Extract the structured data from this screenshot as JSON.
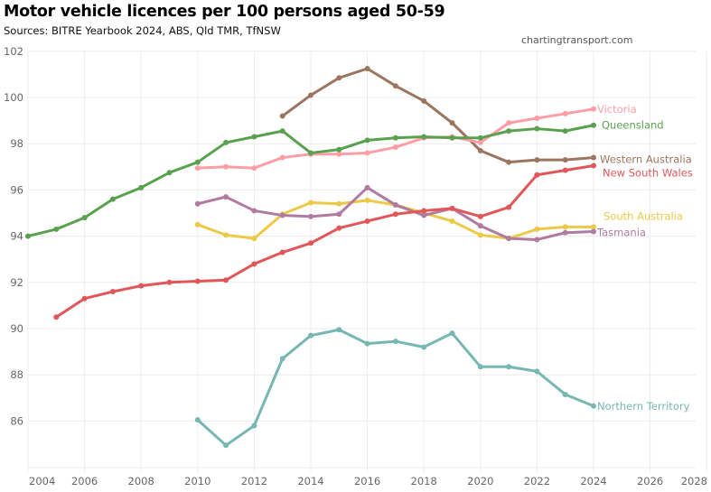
{
  "header": {
    "title": "Motor vehicle licences per 100 persons aged 50-59",
    "subtitle": "Sources: BITRE Yearbook 2024, ABS, Qld TMR, TfNSW",
    "watermark": "chartingtransport.com"
  },
  "chart_data": {
    "type": "line",
    "title": "Motor vehicle licences per 100 persons aged 50-59",
    "subtitle": "Sources: BITRE Yearbook 2024, ABS, Qld TMR, TfNSW",
    "xlabel": "",
    "ylabel": "",
    "xlim": [
      2004,
      2028.4
    ],
    "ylim": [
      84.0,
      102.2
    ],
    "x_ticks": [
      2004,
      2006,
      2008,
      2010,
      2012,
      2014,
      2016,
      2018,
      2020,
      2022,
      2024,
      2026,
      2028
    ],
    "y_ticks": [
      86,
      88,
      90,
      92,
      94,
      96,
      98,
      100,
      102
    ],
    "grid": true,
    "legend": "direct labels at line ends (right)",
    "series": [
      {
        "name": "Queensland",
        "color": "#59a14f",
        "x": [
          2004,
          2005,
          2006,
          2007,
          2008,
          2009,
          2010,
          2011,
          2012,
          2013,
          2014,
          2015,
          2016,
          2017,
          2018,
          2019,
          2020,
          2021,
          2022,
          2023,
          2024
        ],
        "values": [
          94.0,
          94.3,
          94.8,
          95.6,
          96.1,
          96.75,
          97.2,
          98.05,
          98.3,
          98.55,
          97.6,
          97.75,
          98.15,
          98.25,
          98.3,
          98.25,
          98.25,
          98.55,
          98.65,
          98.55,
          98.8
        ]
      },
      {
        "name": "Victoria",
        "color": "#ff9da7",
        "x": [
          2010,
          2011,
          2012,
          2013,
          2014,
          2015,
          2016,
          2017,
          2018,
          2019,
          2020,
          2021,
          2022,
          2023,
          2024
        ],
        "values": [
          96.95,
          97.0,
          96.95,
          97.4,
          97.55,
          97.55,
          97.6,
          97.85,
          98.25,
          98.3,
          98.05,
          98.9,
          99.1,
          99.3,
          99.5
        ]
      },
      {
        "name": "Western Australia",
        "color": "#9c755f",
        "x": [
          2013,
          2014,
          2015,
          2016,
          2017,
          2018,
          2019,
          2020,
          2021,
          2022,
          2023,
          2024
        ],
        "values": [
          99.2,
          100.1,
          100.85,
          101.25,
          100.5,
          99.85,
          98.9,
          97.7,
          97.2,
          97.3,
          97.3,
          97.4
        ]
      },
      {
        "name": "New South Wales",
        "color": "#e15759",
        "x": [
          2005,
          2006,
          2007,
          2008,
          2009,
          2010,
          2011,
          2012,
          2013,
          2014,
          2015,
          2016,
          2017,
          2018,
          2019,
          2020,
          2021,
          2022,
          2023,
          2024
        ],
        "values": [
          90.5,
          91.3,
          91.6,
          91.85,
          92.0,
          92.05,
          92.1,
          92.8,
          93.3,
          93.7,
          94.35,
          94.65,
          94.95,
          95.1,
          95.2,
          94.85,
          95.25,
          96.65,
          96.85,
          97.05
        ]
      },
      {
        "name": "South Australia",
        "color": "#edc948",
        "x": [
          2010,
          2011,
          2012,
          2013,
          2014,
          2015,
          2016,
          2017,
          2018,
          2019,
          2020,
          2021,
          2022,
          2023,
          2024
        ],
        "values": [
          94.5,
          94.05,
          93.9,
          94.95,
          95.45,
          95.4,
          95.55,
          95.35,
          95.0,
          94.65,
          94.05,
          93.9,
          94.3,
          94.4,
          94.4
        ]
      },
      {
        "name": "Tasmania",
        "color": "#b07aa1",
        "x": [
          2010,
          2011,
          2012,
          2013,
          2014,
          2015,
          2016,
          2017,
          2018,
          2019,
          2020,
          2021,
          2022,
          2023,
          2024
        ],
        "values": [
          95.4,
          95.7,
          95.1,
          94.9,
          94.85,
          94.95,
          96.1,
          95.35,
          94.9,
          95.2,
          94.45,
          93.9,
          93.85,
          94.15,
          94.2
        ]
      },
      {
        "name": "Northern Territory",
        "color": "#76b7b2",
        "x": [
          2010,
          2011,
          2012,
          2013,
          2014,
          2015,
          2016,
          2017,
          2018,
          2019,
          2020,
          2021,
          2022,
          2023,
          2024
        ],
        "values": [
          86.05,
          84.95,
          85.8,
          88.7,
          89.7,
          89.95,
          89.35,
          89.45,
          89.2,
          89.8,
          88.35,
          88.35,
          88.15,
          87.15,
          86.65
        ]
      }
    ]
  }
}
